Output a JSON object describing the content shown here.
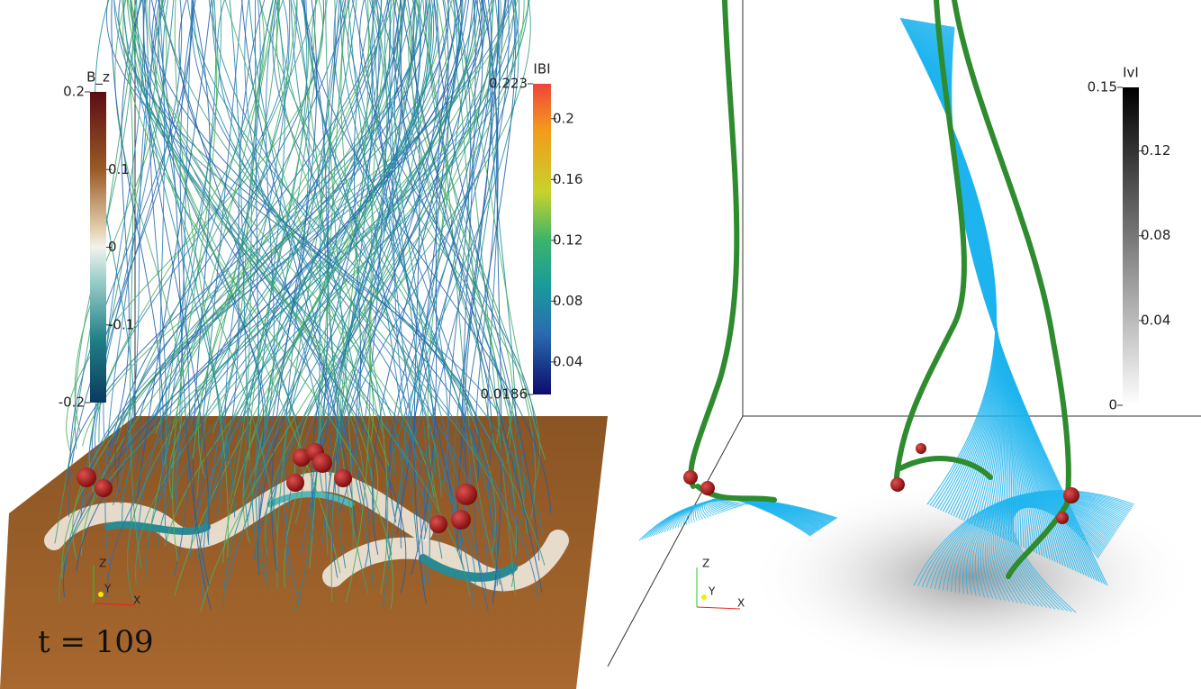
{
  "left_panel": {
    "colorbars": [
      {
        "title": "B_z",
        "range": [
          -0.2,
          0.2
        ],
        "ticks": [
          0.1,
          0,
          -0.1
        ]
      },
      {
        "title": "IBI",
        "range": [
          0.0186,
          0.223
        ],
        "ticks": [
          0.2,
          0.16,
          0.12,
          0.08,
          0.04
        ]
      }
    ],
    "time_label": "t = 109",
    "axes": {
      "z": "Z",
      "y": "Y",
      "x": "X"
    }
  },
  "right_panel": {
    "colorbars": [
      {
        "title": "IvI",
        "range": [
          0,
          0.15
        ],
        "ticks": [
          0.12,
          0.08,
          0.04
        ]
      }
    ],
    "axes": {
      "z": "Z",
      "y": "Y",
      "x": "X"
    }
  }
}
